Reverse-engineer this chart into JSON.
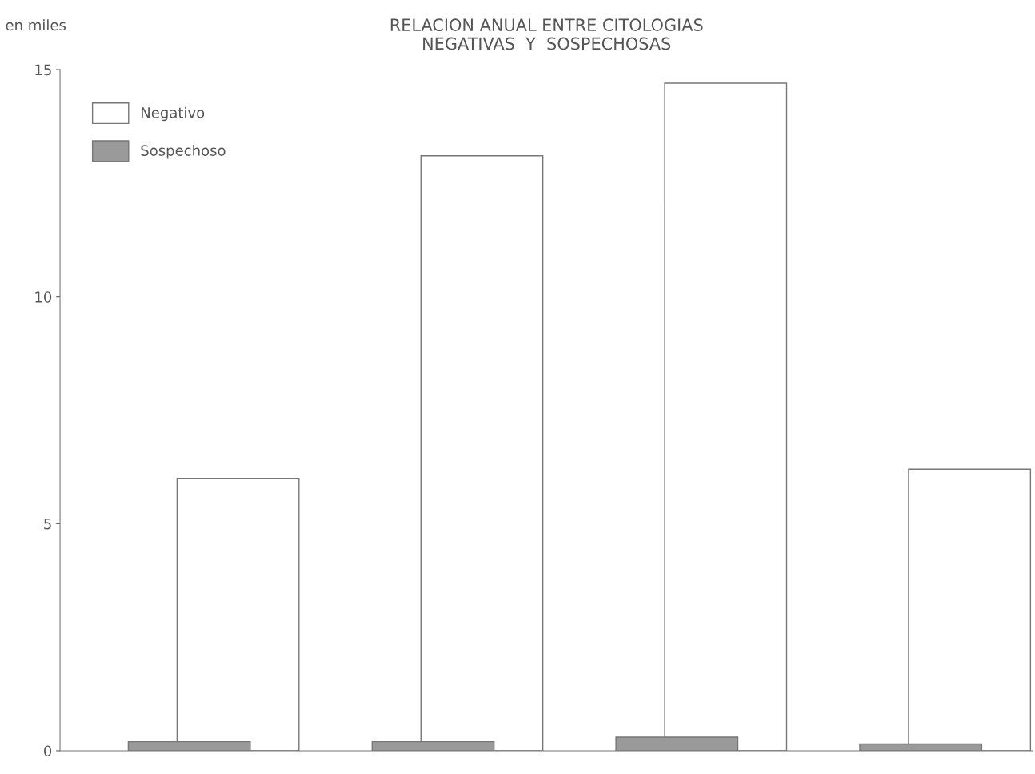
{
  "chart_data": {
    "type": "bar",
    "title": "RELACION ANUAL ENTRE CITOLOGIAS\nNEGATIVAS  Y  SOSPECHOSAS",
    "ylabel": "en miles",
    "categories": [
      null,
      null,
      null,
      null
    ],
    "series": [
      {
        "name": "Negativo",
        "color": "#ffffff",
        "values": [
          6.0,
          13.1,
          14.7,
          6.2
        ]
      },
      {
        "name": "Sospechoso",
        "color": "#9a9a9a",
        "values": [
          0.2,
          0.2,
          0.3,
          0.15
        ]
      }
    ],
    "ylim": [
      0,
      15
    ],
    "yticks": [
      0,
      5,
      10,
      15
    ],
    "grid": false,
    "legend": "top left"
  }
}
